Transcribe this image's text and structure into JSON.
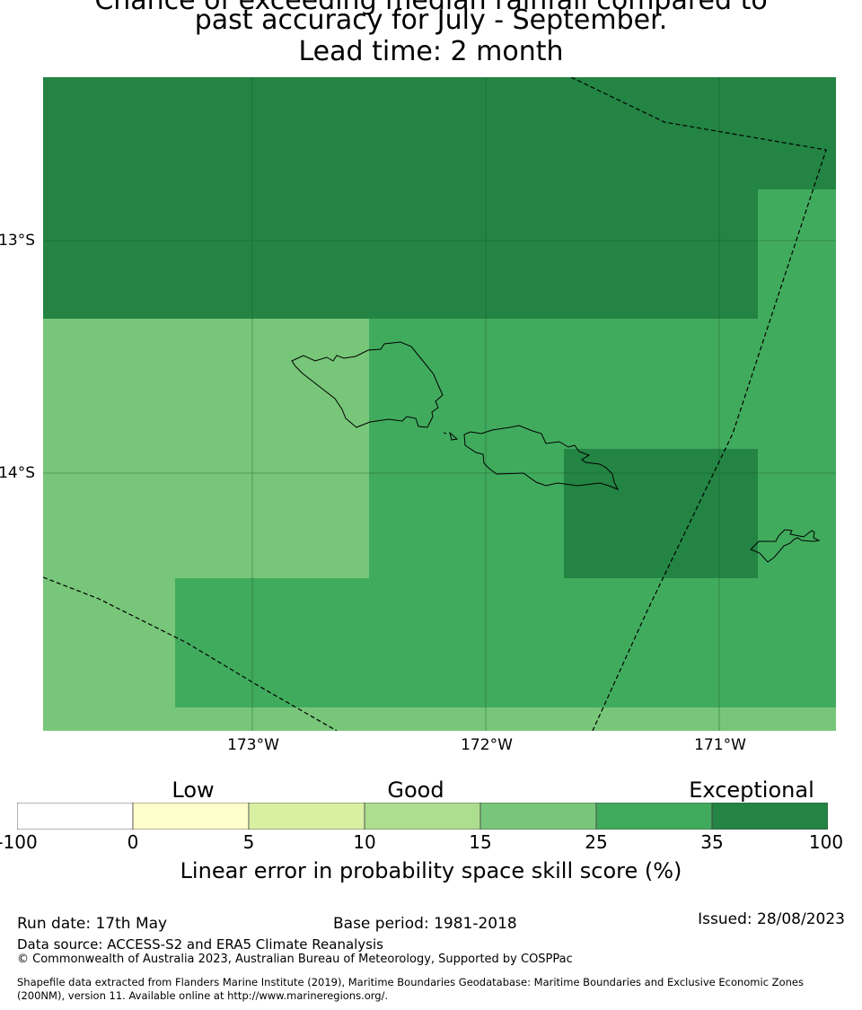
{
  "title": {
    "lines": [
      "Chance of exceeding median rainfall compared to",
      "past accuracy for July - September.",
      "Lead time: 2 month"
    ]
  },
  "map": {
    "lat_labels": [
      "13°S",
      "14°S"
    ],
    "lon_labels": [
      "173°W",
      "172°W",
      "171°W"
    ]
  },
  "colorbar": {
    "category_labels": [
      "Low",
      "Good",
      "Exceptional"
    ],
    "ticks": [
      "-100",
      "0",
      "5",
      "10",
      "15",
      "25",
      "35",
      "100"
    ],
    "colors": [
      "#ffffff",
      "#ffffcc",
      "#d9f0a3",
      "#addd8e",
      "#78c679",
      "#41ab5d",
      "#238443"
    ],
    "label": "Linear error in probability space skill score (%)"
  },
  "footer": {
    "run_date": "Run date: 17th May",
    "base_period": "Base period: 1981-2018",
    "issued": "Issued: 28/08/2023",
    "data_source": "Data source: ACCESS-S2 and ERA5 Climate Reanalysis",
    "copyright": "© Commonwealth of Australia 2023, Australian Bureau of Meteorology, Supported by COSPPac",
    "shapefile_line1": "Shapefile data extracted from Flanders Marine Institute (2019), Maritime Boundaries Geodatabase: Maritime Boundaries and Exclusive Economic Zones",
    "shapefile_line2": "(200NM), version 11. Available online at http://www.marineregions.org/."
  }
}
